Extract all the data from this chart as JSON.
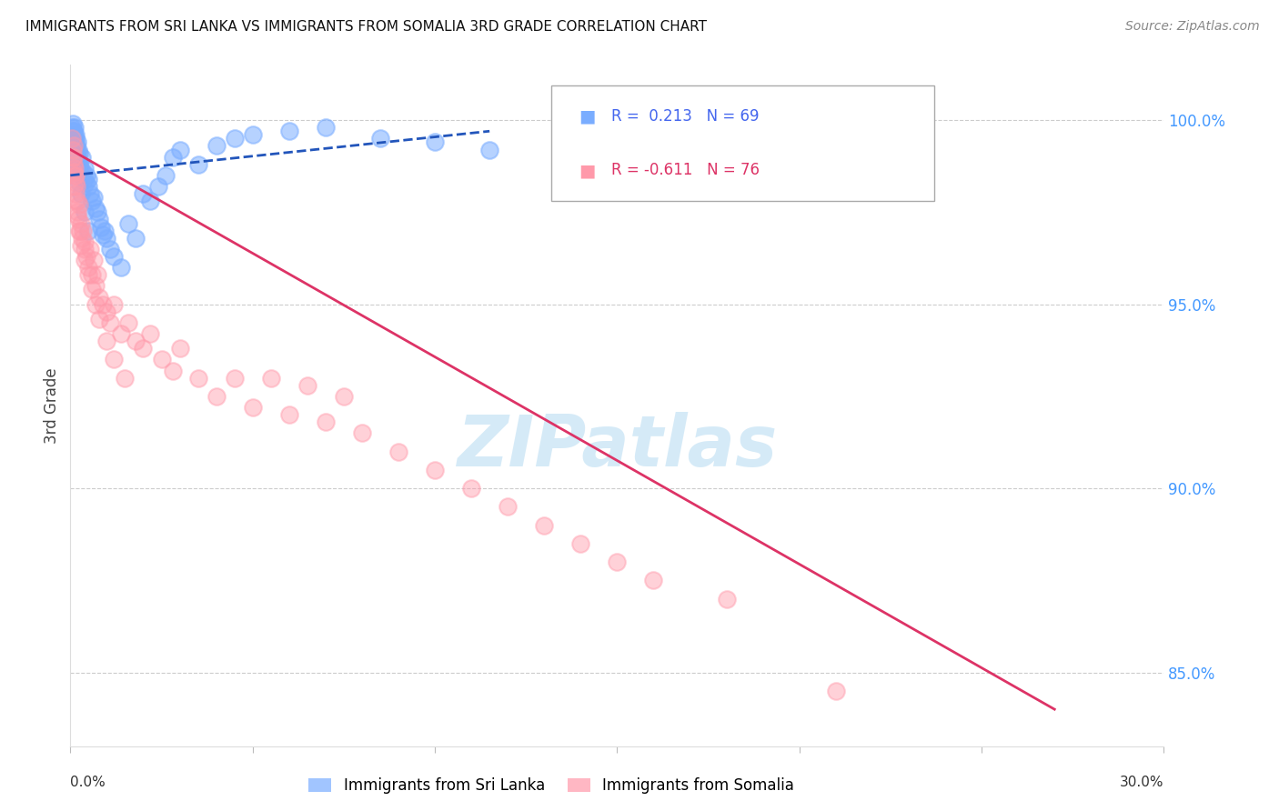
{
  "title": "IMMIGRANTS FROM SRI LANKA VS IMMIGRANTS FROM SOMALIA 3RD GRADE CORRELATION CHART",
  "source": "Source: ZipAtlas.com",
  "ylabel": "3rd Grade",
  "xlim": [
    0.0,
    30.0
  ],
  "ylim": [
    83.0,
    101.5
  ],
  "yticks": [
    85.0,
    90.0,
    95.0,
    100.0
  ],
  "ytick_labels": [
    "85.0%",
    "90.0%",
    "95.0%",
    "100.0%"
  ],
  "color_srilanka": "#7aadff",
  "color_somalia": "#ff99aa",
  "trendline_srilanka": "#2255bb",
  "trendline_somalia": "#dd3366",
  "watermark": "ZIPatlas",
  "sri_lanka_x": [
    0.05,
    0.07,
    0.08,
    0.09,
    0.1,
    0.1,
    0.11,
    0.12,
    0.13,
    0.14,
    0.15,
    0.16,
    0.17,
    0.18,
    0.2,
    0.21,
    0.22,
    0.23,
    0.25,
    0.27,
    0.3,
    0.32,
    0.35,
    0.38,
    0.4,
    0.42,
    0.45,
    0.48,
    0.5,
    0.55,
    0.6,
    0.65,
    0.7,
    0.75,
    0.8,
    0.85,
    0.9,
    0.95,
    1.0,
    1.1,
    1.2,
    1.4,
    1.6,
    1.8,
    2.0,
    2.2,
    2.4,
    2.6,
    2.8,
    3.0,
    3.5,
    4.0,
    4.5,
    5.0,
    6.0,
    7.0,
    8.5,
    10.0,
    11.5,
    0.06,
    0.08,
    0.1,
    0.12,
    0.15,
    0.18,
    0.2,
    0.25,
    0.3,
    0.4,
    0.5
  ],
  "sri_lanka_y": [
    99.8,
    99.9,
    99.5,
    99.7,
    99.6,
    99.3,
    99.8,
    99.4,
    99.5,
    99.2,
    99.6,
    99.1,
    99.3,
    99.0,
    99.4,
    99.2,
    98.9,
    99.1,
    98.8,
    98.7,
    98.5,
    99.0,
    98.6,
    98.4,
    98.7,
    98.3,
    98.5,
    98.2,
    98.4,
    98.0,
    97.8,
    97.9,
    97.6,
    97.5,
    97.3,
    97.1,
    96.9,
    97.0,
    96.8,
    96.5,
    96.3,
    96.0,
    97.2,
    96.8,
    98.0,
    97.8,
    98.2,
    98.5,
    99.0,
    99.2,
    98.8,
    99.3,
    99.5,
    99.6,
    99.7,
    99.8,
    99.5,
    99.4,
    99.2,
    99.7,
    99.6,
    99.4,
    99.2,
    99.0,
    98.8,
    98.6,
    98.3,
    98.0,
    97.5,
    97.0
  ],
  "somalia_x": [
    0.05,
    0.07,
    0.08,
    0.09,
    0.1,
    0.11,
    0.12,
    0.13,
    0.14,
    0.15,
    0.17,
    0.18,
    0.2,
    0.22,
    0.25,
    0.27,
    0.3,
    0.32,
    0.35,
    0.38,
    0.4,
    0.45,
    0.5,
    0.55,
    0.6,
    0.65,
    0.7,
    0.75,
    0.8,
    0.9,
    1.0,
    1.1,
    1.2,
    1.4,
    1.6,
    1.8,
    2.0,
    2.2,
    2.5,
    2.8,
    3.0,
    3.5,
    4.0,
    4.5,
    5.0,
    5.5,
    6.0,
    6.5,
    7.0,
    7.5,
    8.0,
    9.0,
    10.0,
    11.0,
    12.0,
    13.0,
    14.0,
    15.0,
    16.0,
    18.0,
    21.0,
    0.06,
    0.08,
    0.1,
    0.15,
    0.2,
    0.25,
    0.3,
    0.4,
    0.5,
    0.6,
    0.7,
    0.8,
    1.0,
    1.2,
    1.5
  ],
  "somalia_y": [
    99.5,
    99.2,
    99.0,
    98.8,
    99.3,
    98.5,
    98.7,
    98.3,
    98.5,
    98.0,
    98.2,
    97.8,
    97.5,
    97.3,
    97.7,
    97.0,
    97.2,
    96.8,
    97.0,
    96.5,
    96.7,
    96.3,
    96.0,
    96.5,
    95.8,
    96.2,
    95.5,
    95.8,
    95.2,
    95.0,
    94.8,
    94.5,
    95.0,
    94.2,
    94.5,
    94.0,
    93.8,
    94.2,
    93.5,
    93.2,
    93.8,
    93.0,
    92.5,
    93.0,
    92.2,
    93.0,
    92.0,
    92.8,
    91.8,
    92.5,
    91.5,
    91.0,
    90.5,
    90.0,
    89.5,
    89.0,
    88.5,
    88.0,
    87.5,
    87.0,
    84.5,
    99.0,
    98.6,
    98.2,
    97.8,
    97.4,
    97.0,
    96.6,
    96.2,
    95.8,
    95.4,
    95.0,
    94.6,
    94.0,
    93.5,
    93.0
  ]
}
